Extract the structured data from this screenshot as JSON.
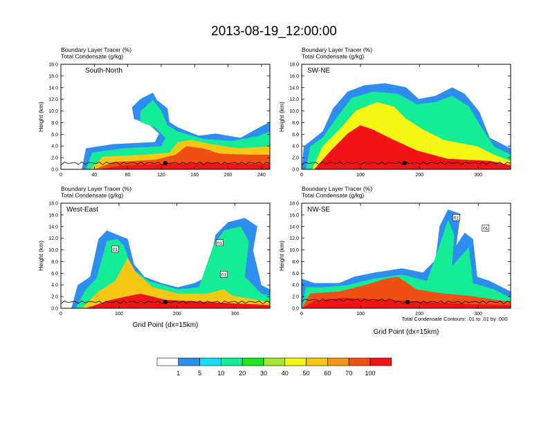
{
  "title": "2013-08-19_12:00:00",
  "footer_note": "Total Condensate Contours: .01 to .01 by .000",
  "colorbar": {
    "labels": [
      "1",
      "5",
      "10",
      "20",
      "30",
      "40",
      "50",
      "60",
      "70",
      "100"
    ],
    "colors": [
      "#ffffff",
      "#2e8ef0",
      "#19dcf4",
      "#14ec96",
      "#1ee61e",
      "#a2e62e",
      "#f6f614",
      "#f6c814",
      "#f69614",
      "#f05014",
      "#f01414"
    ]
  },
  "chart_data": [
    {
      "type": "heatmap",
      "label": "South-North",
      "title_lines": [
        "Boundary Layer Tracer   (%)",
        "Total Condensate   (g/kg)"
      ],
      "ylabel": "Height (km)",
      "xlabel": "",
      "xlim": [
        0,
        250
      ],
      "ylim": [
        0,
        18
      ],
      "xticks": [
        "0",
        "40",
        "80",
        "120",
        "160",
        "200",
        "240"
      ],
      "yticks": [
        "0.0",
        "2.0",
        "4.0",
        "6.0",
        "8.0",
        "10.0",
        "12.0",
        "14.0",
        "16.0",
        "18.0"
      ],
      "marker_x": 125
    },
    {
      "type": "heatmap",
      "label": "SW-NE",
      "title_lines": [
        "Boundary Layer Tracer   (%)",
        "Total Condensate   (g/kg)"
      ],
      "ylabel": "Height (km)",
      "xlabel": "",
      "xlim": [
        0,
        355
      ],
      "ylim": [
        0,
        18
      ],
      "xticks": [
        "0",
        "100",
        "200",
        "300"
      ],
      "yticks": [
        "0.0",
        "2.0",
        "4.0",
        "6.0",
        "8.0",
        "10.0",
        "12.0",
        "14.0",
        "16.0",
        "18.0"
      ],
      "marker_x": 175
    },
    {
      "type": "heatmap",
      "label": "West-East",
      "title_lines": [
        "Boundary Layer Tracer   (%)",
        "Total Condensate   (g/kg)"
      ],
      "ylabel": "Height (km)",
      "xlabel": "Grid Point (dx=15km)",
      "xlim": [
        0,
        360
      ],
      "ylim": [
        0,
        18
      ],
      "xticks": [
        "0",
        "100",
        "200",
        "300"
      ],
      "yticks": [
        "0.0",
        "2.0",
        "4.0",
        "6.0",
        "8.0",
        "10.0",
        "12.0",
        "14.0",
        "16.0",
        "18.0"
      ],
      "marker_x": 180,
      "contour_labels": [
        "01",
        "01",
        "01"
      ]
    },
    {
      "type": "heatmap",
      "label": "NW-SE",
      "title_lines": [
        "Boundary Layer Tracer   (%)",
        "Total Condensate   (g/kg)"
      ],
      "ylabel": "Height (km)",
      "xlabel": "Grid Point (dx=15km)",
      "xlim": [
        0,
        355
      ],
      "ylim": [
        0,
        18
      ],
      "xticks": [
        "0",
        "100",
        "200",
        "300"
      ],
      "yticks": [
        "0.0",
        "2.0",
        "4.0",
        "6.0",
        "8.0",
        "10.0",
        "12.0",
        "14.0",
        "16.0",
        "18.0"
      ],
      "marker_x": 180,
      "contour_labels": [
        "01",
        "01"
      ]
    }
  ]
}
